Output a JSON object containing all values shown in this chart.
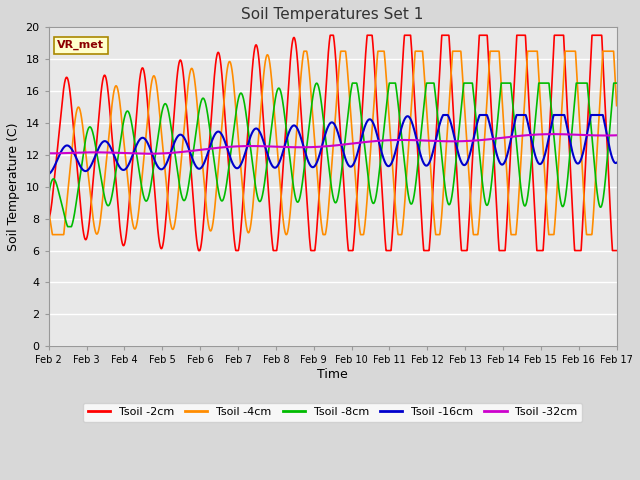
{
  "title": "Soil Temperatures Set 1",
  "xlabel": "Time",
  "ylabel": "Soil Temperature (C)",
  "ylim": [
    0,
    20
  ],
  "xlim": [
    0,
    15
  ],
  "fig_bg": "#d8d8d8",
  "plot_bg": "#e8e8e8",
  "annotation": "VR_met",
  "xtick_labels": [
    "Feb 2",
    "Feb 3",
    "Feb 4",
    "Feb 5",
    "Feb 6",
    "Feb 7",
    "Feb 8",
    "Feb 9",
    "Feb 10",
    "Feb 11",
    "Feb 12",
    "Feb 13",
    "Feb 14",
    "Feb 15",
    "Feb 16",
    "Feb 17"
  ],
  "ytick_labels": [
    "0",
    "2",
    "4",
    "6",
    "8",
    "10",
    "12",
    "14",
    "16",
    "18",
    "20"
  ],
  "series": {
    "Tsoil -2cm": {
      "color": "#ff0000",
      "lw": 1.2
    },
    "Tsoil -4cm": {
      "color": "#ff8c00",
      "lw": 1.2
    },
    "Tsoil -8cm": {
      "color": "#00bb00",
      "lw": 1.2
    },
    "Tsoil -16cm": {
      "color": "#0000cc",
      "lw": 1.5
    },
    "Tsoil -32cm": {
      "color": "#cc00cc",
      "lw": 1.5
    }
  },
  "legend_order": [
    "Tsoil -2cm",
    "Tsoil -4cm",
    "Tsoil -8cm",
    "Tsoil -16cm",
    "Tsoil -32cm"
  ]
}
